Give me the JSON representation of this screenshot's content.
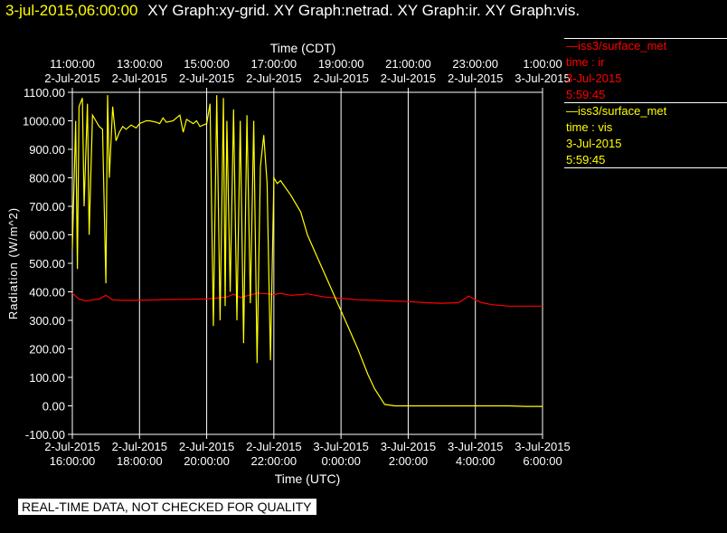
{
  "header": {
    "timestamp": "3-jul-2015,06:00:00",
    "graphs": "XY Graph:xy-grid.  XY Graph:netrad.  XY Graph:ir.  XY Graph:vis."
  },
  "legend": [
    {
      "line1": "—iss3/surface_met",
      "line2": "time : ir",
      "line3": "3-Jul-2015",
      "line4": "5:59:45",
      "color": "#ff0000"
    },
    {
      "line1": "—iss3/surface_met",
      "line2": "time : vis",
      "line3": "3-Jul-2015",
      "line4": "5:59:45",
      "color": "#ffff00"
    }
  ],
  "quality_notice": "REAL-TIME DATA, NOT CHECKED FOR QUALITY",
  "chart_data": {
    "type": "line",
    "title": "",
    "xlabel": "Time (UTC)",
    "x2label": "Time (CDT)",
    "ylabel": "Radiation (W/m^2)",
    "ylim": [
      -100,
      1100
    ],
    "xlim_utc_hours": [
      16,
      30
    ],
    "grid": true,
    "y_ticks": [
      "1100.00",
      "1000.00",
      "900.00",
      "800.00",
      "700.00",
      "600.00",
      "500.00",
      "400.00",
      "300.00",
      "200.00",
      "100.00",
      "0.00",
      "-100.00"
    ],
    "x_ticks_bottom": [
      {
        "date": "2-Jul-2015",
        "time": "16:00:00"
      },
      {
        "date": "2-Jul-2015",
        "time": "18:00:00"
      },
      {
        "date": "2-Jul-2015",
        "time": "20:00:00"
      },
      {
        "date": "2-Jul-2015",
        "time": "22:00:00"
      },
      {
        "date": "3-Jul-2015",
        "time": "0:00:00"
      },
      {
        "date": "3-Jul-2015",
        "time": "2:00:00"
      },
      {
        "date": "3-Jul-2015",
        "time": "4:00:00"
      },
      {
        "date": "3-Jul-2015",
        "time": "6:00:00"
      }
    ],
    "x_ticks_top": [
      {
        "time": "11:00:00",
        "date": "2-Jul-2015"
      },
      {
        "time": "13:00:00",
        "date": "2-Jul-2015"
      },
      {
        "time": "15:00:00",
        "date": "2-Jul-2015"
      },
      {
        "time": "17:00:00",
        "date": "2-Jul-2015"
      },
      {
        "time": "19:00:00",
        "date": "2-Jul-2015"
      },
      {
        "time": "21:00:00",
        "date": "2-Jul-2015"
      },
      {
        "time": "23:00:00",
        "date": "2-Jul-2015"
      },
      {
        "time": "1:00:00",
        "date": "3-Jul-2015"
      }
    ],
    "series": [
      {
        "color": "#ff0000",
        "x": [
          16.0,
          16.2,
          16.4,
          16.6,
          16.8,
          17.0,
          17.2,
          17.5,
          18.0,
          18.5,
          19.0,
          19.5,
          20.0,
          20.3,
          20.6,
          20.8,
          21.0,
          21.2,
          21.5,
          21.8,
          22.0,
          22.2,
          22.5,
          22.8,
          23.0,
          23.5,
          24.0,
          24.5,
          25.0,
          25.5,
          26.0,
          26.5,
          27.0,
          27.5,
          27.8,
          28.0,
          28.2,
          28.5,
          29.0,
          29.5,
          30.0
        ],
        "y": [
          395,
          375,
          368,
          372,
          375,
          388,
          372,
          370,
          370,
          372,
          373,
          374,
          375,
          378,
          382,
          392,
          380,
          386,
          396,
          393,
          390,
          395,
          388,
          390,
          393,
          382,
          377,
          372,
          370,
          368,
          366,
          362,
          360,
          362,
          385,
          372,
          362,
          355,
          350,
          350,
          350
        ]
      },
      {
        "color": "#ffff00",
        "x": [
          16.0,
          16.1,
          16.15,
          16.2,
          16.3,
          16.35,
          16.45,
          16.5,
          16.6,
          16.7,
          16.8,
          16.9,
          17.0,
          17.05,
          17.1,
          17.2,
          17.3,
          17.4,
          17.5,
          17.6,
          17.75,
          17.9,
          18.0,
          18.2,
          18.3,
          18.5,
          18.6,
          18.7,
          18.8,
          19.0,
          19.2,
          19.3,
          19.4,
          19.6,
          19.7,
          19.8,
          20.0,
          20.1,
          20.2,
          20.3,
          20.4,
          20.5,
          20.55,
          20.6,
          20.7,
          20.8,
          20.9,
          21.0,
          21.1,
          21.2,
          21.3,
          21.4,
          21.5,
          21.6,
          21.7,
          21.8,
          21.9,
          22.0,
          22.1,
          22.2,
          22.5,
          22.8,
          23.0,
          23.3,
          23.6,
          23.9,
          24.2,
          24.5,
          24.8,
          25.0,
          25.3,
          25.6,
          25.9,
          26.0,
          26.5,
          27.0,
          27.5,
          28.0,
          28.5,
          29.0,
          29.5,
          30.0
        ],
        "y": [
          550,
          1000,
          480,
          1050,
          1080,
          700,
          1060,
          600,
          1020,
          1000,
          980,
          970,
          430,
          1090,
          800,
          1050,
          930,
          960,
          980,
          970,
          985,
          975,
          990,
          1000,
          1000,
          995,
          990,
          1010,
          995,
          1000,
          1020,
          960,
          1005,
          990,
          1000,
          980,
          990,
          1060,
          280,
          1090,
          300,
          1080,
          350,
          1000,
          400,
          1040,
          300,
          1000,
          220,
          1020,
          360,
          1000,
          150,
          840,
          950,
          780,
          160,
          800,
          780,
          790,
          740,
          680,
          600,
          520,
          440,
          360,
          280,
          200,
          110,
          60,
          5,
          0,
          0,
          0,
          0,
          0,
          0,
          0,
          0,
          0,
          -2,
          -2
        ]
      }
    ]
  }
}
